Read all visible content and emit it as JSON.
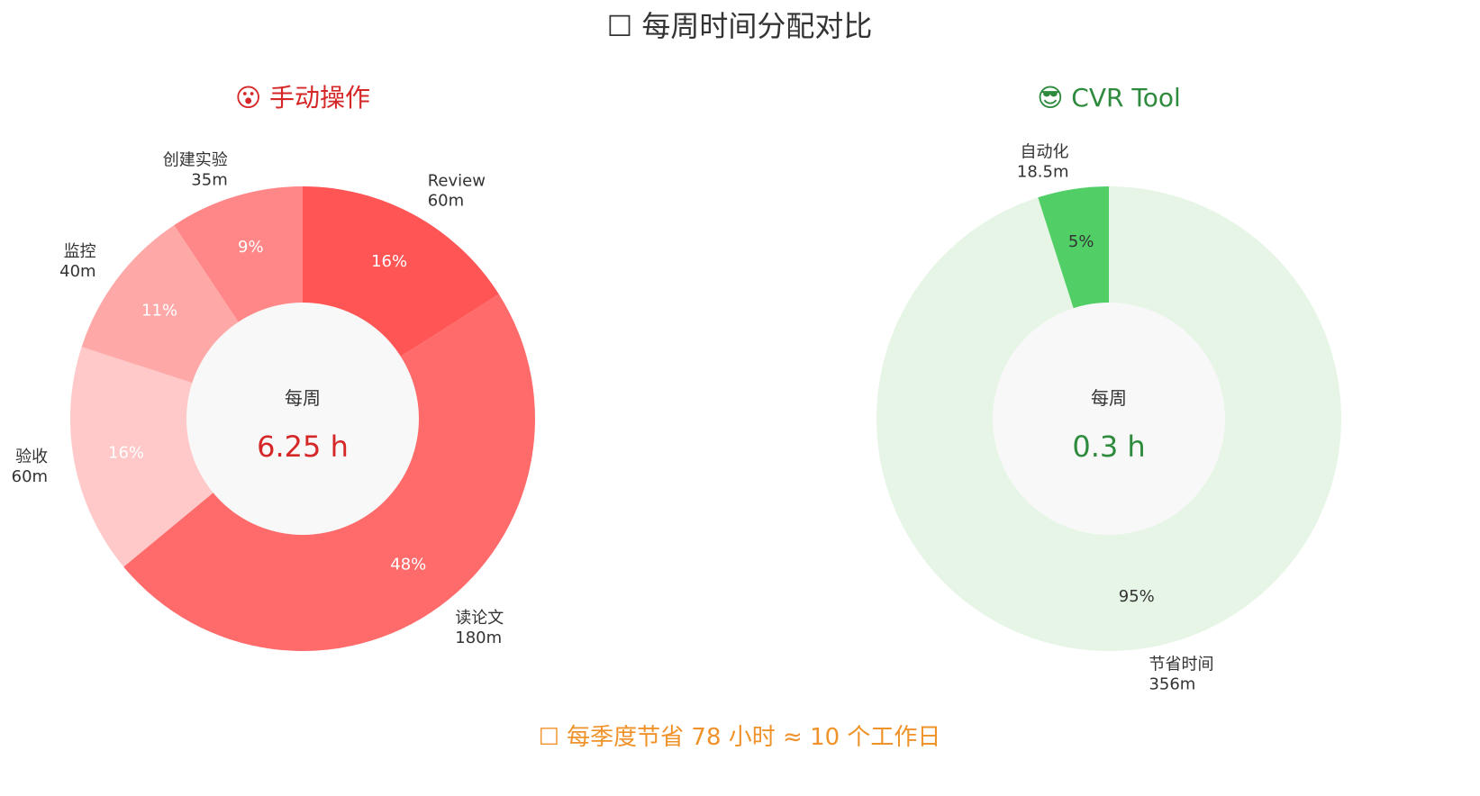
{
  "colors": {
    "title": "#333333",
    "manual_accent": "#d62728",
    "tool_accent": "#2e8b3e",
    "footer": "#f0922a",
    "center_fill": "#f8f8f8"
  },
  "title": "☐ 每周时间分配对比",
  "footer": "☐ 每季度节省 78 小时 ≈ 10 个工作日",
  "chart_data": [
    {
      "type": "pie",
      "title": "😮 手动操作",
      "center_caption": "每周",
      "center_value": "6.25 h",
      "slices": [
        {
          "label": "Review",
          "amount": "60m",
          "value": 60,
          "pct": "16%",
          "color": "#ff5555",
          "pct_color": "#ffffff"
        },
        {
          "label": "读论文",
          "amount": "180m",
          "value": 180,
          "pct": "48%",
          "color": "#ff6b6b",
          "pct_color": "#ffffff"
        },
        {
          "label": "验收",
          "amount": "60m",
          "value": 60,
          "pct": "16%",
          "color": "#ffc9c9",
          "pct_color": "#ffffff"
        },
        {
          "label": "监控",
          "amount": "40m",
          "value": 40,
          "pct": "11%",
          "color": "#ffa8a8",
          "pct_color": "#ffffff"
        },
        {
          "label": "创建实验",
          "amount": "35m",
          "value": 35,
          "pct": "9%",
          "color": "#ff8787",
          "pct_color": "#ffffff"
        }
      ]
    },
    {
      "type": "pie",
      "title": "😎 CVR Tool",
      "center_caption": "每周",
      "center_value": "0.3 h",
      "slices": [
        {
          "label": "节省时间",
          "amount": "356m",
          "value": 356.5,
          "pct": "95%",
          "color": "#e6f5e6",
          "pct_color": "#333333"
        },
        {
          "label": "自动化",
          "amount": "18.5m",
          "value": 18.5,
          "pct": "5%",
          "color": "#51cf66",
          "pct_color": "#333333"
        }
      ]
    }
  ]
}
